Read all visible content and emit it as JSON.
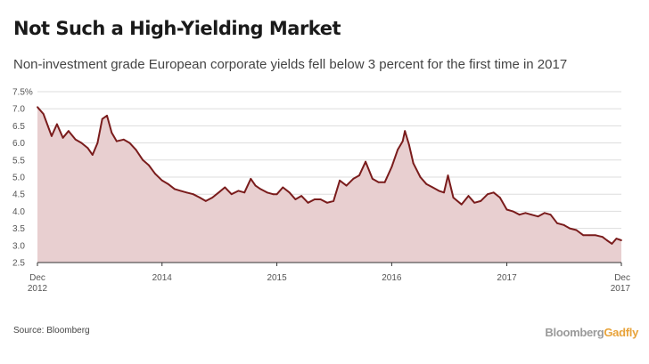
{
  "header": {
    "title": "Not Such a High-Yielding Market",
    "subtitle": "Non-investment grade European corporate yields fell below 3 percent for the first time in 2017"
  },
  "footer": {
    "source": "Source: Bloomberg",
    "brand_primary": "Bloomberg",
    "brand_secondary": "Gadfly"
  },
  "colors": {
    "line": "#7a1c1c",
    "area": "#e8cfd0",
    "grid": "#dddddd",
    "brand_gray": "#9a9a9a",
    "brand_orange": "#e8a33a"
  },
  "chart_data": {
    "type": "area",
    "title": "Not Such a High-Yielding Market",
    "subtitle": "Non-investment grade European corporate yields fell below 3 percent for the first time in 2017",
    "xlabel": "",
    "ylabel": "",
    "ylim": [
      2.5,
      7.5
    ],
    "xlim": [
      "2012-12-01",
      "2017-12-31"
    ],
    "grid": true,
    "legend": "none",
    "y_ticks": [
      {
        "value": 7.5,
        "label": "7.5%"
      },
      {
        "value": 7.0,
        "label": "7.0"
      },
      {
        "value": 6.5,
        "label": "6.5"
      },
      {
        "value": 6.0,
        "label": "6.0"
      },
      {
        "value": 5.5,
        "label": "5.5"
      },
      {
        "value": 5.0,
        "label": "5.0"
      },
      {
        "value": 4.5,
        "label": "4.5"
      },
      {
        "value": 4.0,
        "label": "4.0"
      },
      {
        "value": 3.5,
        "label": "3.5"
      },
      {
        "value": 3.0,
        "label": "3.0"
      },
      {
        "value": 2.5,
        "label": "2.5"
      }
    ],
    "x_ticks": [
      {
        "date": "2012-12-01",
        "label": "Dec",
        "sublabel": "2012"
      },
      {
        "date": "2014-01-01",
        "label": "2014",
        "sublabel": ""
      },
      {
        "date": "2015-01-01",
        "label": "2015",
        "sublabel": ""
      },
      {
        "date": "2016-01-01",
        "label": "2016",
        "sublabel": ""
      },
      {
        "date": "2017-01-01",
        "label": "2017",
        "sublabel": ""
      },
      {
        "date": "2017-12-31",
        "label": "Dec",
        "sublabel": "2017"
      }
    ],
    "series": [
      {
        "x": [
          "2012-12-01",
          "2012-12-20",
          "2013-01-15",
          "2013-02-01",
          "2013-02-20",
          "2013-03-10",
          "2013-04-01",
          "2013-04-20",
          "2013-05-10",
          "2013-05-25",
          "2013-06-10",
          "2013-06-25",
          "2013-07-10",
          "2013-07-25",
          "2013-08-10",
          "2013-09-01",
          "2013-09-20",
          "2013-10-10",
          "2013-11-01",
          "2013-11-20",
          "2013-12-10",
          "2014-01-01",
          "2014-01-20",
          "2014-02-10",
          "2014-03-01",
          "2014-03-20",
          "2014-04-10",
          "2014-05-01",
          "2014-05-20",
          "2014-06-10",
          "2014-06-30",
          "2014-07-20",
          "2014-08-10",
          "2014-09-01",
          "2014-09-20",
          "2014-10-10",
          "2014-10-25",
          "2014-11-10",
          "2014-12-01",
          "2014-12-20",
          "2015-01-01",
          "2015-01-20",
          "2015-02-10",
          "2015-03-01",
          "2015-03-20",
          "2015-04-10",
          "2015-05-01",
          "2015-05-20",
          "2015-06-10",
          "2015-06-30",
          "2015-07-20",
          "2015-08-10",
          "2015-09-01",
          "2015-09-20",
          "2015-10-10",
          "2015-11-01",
          "2015-11-20",
          "2015-12-10",
          "2016-01-01",
          "2016-01-20",
          "2016-02-05",
          "2016-02-12",
          "2016-02-25",
          "2016-03-10",
          "2016-04-01",
          "2016-04-20",
          "2016-05-10",
          "2016-05-30",
          "2016-06-15",
          "2016-06-28",
          "2016-07-15",
          "2016-08-10",
          "2016-09-01",
          "2016-09-20",
          "2016-10-10",
          "2016-11-01",
          "2016-11-20",
          "2016-12-10",
          "2017-01-01",
          "2017-01-20",
          "2017-02-10",
          "2017-03-01",
          "2017-03-20",
          "2017-04-10",
          "2017-05-01",
          "2017-05-20",
          "2017-06-10",
          "2017-07-01",
          "2017-07-20",
          "2017-08-10",
          "2017-09-01",
          "2017-09-20",
          "2017-10-10",
          "2017-11-01",
          "2017-11-15",
          "2017-12-01",
          "2017-12-15",
          "2017-12-31"
        ],
        "y": [
          7.05,
          6.85,
          6.2,
          6.55,
          6.15,
          6.35,
          6.1,
          6.0,
          5.85,
          5.65,
          6.0,
          6.7,
          6.8,
          6.3,
          6.05,
          6.1,
          6.0,
          5.8,
          5.5,
          5.35,
          5.1,
          4.9,
          4.8,
          4.65,
          4.6,
          4.55,
          4.5,
          4.4,
          4.3,
          4.4,
          4.55,
          4.7,
          4.5,
          4.6,
          4.55,
          4.95,
          4.75,
          4.65,
          4.55,
          4.5,
          4.5,
          4.7,
          4.55,
          4.35,
          4.45,
          4.25,
          4.35,
          4.35,
          4.25,
          4.3,
          4.9,
          4.75,
          4.95,
          5.05,
          5.45,
          4.95,
          4.85,
          4.85,
          5.3,
          5.8,
          6.05,
          6.35,
          5.95,
          5.4,
          5.0,
          4.8,
          4.7,
          4.6,
          4.55,
          5.05,
          4.4,
          4.2,
          4.45,
          4.25,
          4.3,
          4.5,
          4.55,
          4.4,
          4.05,
          4.0,
          3.9,
          3.95,
          3.9,
          3.85,
          3.95,
          3.9,
          3.65,
          3.6,
          3.5,
          3.45,
          3.3,
          3.3,
          3.3,
          3.25,
          3.15,
          3.05,
          3.2,
          3.15
        ]
      }
    ]
  }
}
